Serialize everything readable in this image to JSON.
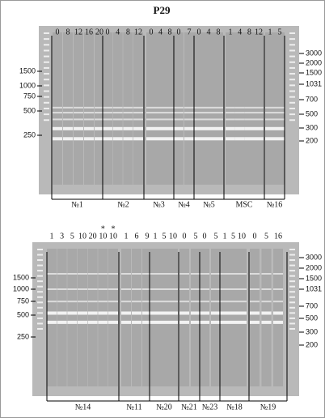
{
  "title": "P29",
  "gels": [
    {
      "groups": [
        {
          "label": "№1",
          "lanes": [
            {
              "label": "0"
            },
            {
              "label": "8"
            },
            {
              "label": "12"
            },
            {
              "label": "16"
            },
            {
              "label": "20"
            }
          ]
        },
        {
          "label": "№2",
          "lanes": [
            {
              "label": "0"
            },
            {
              "label": "4"
            },
            {
              "label": "8"
            },
            {
              "label": "12"
            }
          ]
        },
        {
          "label": "№3",
          "lanes": [
            {
              "label": "0"
            },
            {
              "label": "4"
            },
            {
              "label": "8"
            }
          ]
        },
        {
          "label": "№4",
          "lanes": [
            {
              "label": "0"
            },
            {
              "label": "7"
            }
          ]
        },
        {
          "label": "№5",
          "lanes": [
            {
              "label": "0"
            },
            {
              "label": "4"
            },
            {
              "label": "8"
            }
          ]
        },
        {
          "label": "MSC",
          "lanes": [
            {
              "label": "1"
            },
            {
              "label": "4"
            },
            {
              "label": "8"
            },
            {
              "label": "12"
            }
          ]
        },
        {
          "label": "№16",
          "lanes": [
            {
              "label": "1"
            },
            {
              "label": "5"
            }
          ]
        }
      ],
      "left_ladder": [
        "1500",
        "1000",
        "750",
        "500",
        "250"
      ],
      "right_ladder": [
        "3000",
        "2000",
        "1500",
        "1031",
        "700",
        "500",
        "300",
        "200"
      ]
    },
    {
      "groups": [
        {
          "label": "№14",
          "lanes": [
            {
              "label": "1"
            },
            {
              "label": "3"
            },
            {
              "label": "5"
            },
            {
              "label": "10"
            },
            {
              "label": "20"
            },
            {
              "label": "10",
              "mark": "*"
            },
            {
              "label": "10",
              "mark": "*"
            }
          ]
        },
        {
          "label": "№11",
          "lanes": [
            {
              "label": "1"
            },
            {
              "label": "6"
            },
            {
              "label": "9"
            }
          ]
        },
        {
          "label": "№20",
          "lanes": [
            {
              "label": "1"
            },
            {
              "label": "5"
            },
            {
              "label": "10"
            }
          ]
        },
        {
          "label": "№21",
          "lanes": [
            {
              "label": "0"
            },
            {
              "label": "5"
            }
          ]
        },
        {
          "label": "№23",
          "lanes": [
            {
              "label": "0"
            },
            {
              "label": "5"
            }
          ]
        },
        {
          "label": "№18",
          "lanes": [
            {
              "label": "1"
            },
            {
              "label": "5"
            },
            {
              "label": "10"
            }
          ]
        },
        {
          "label": "№19",
          "lanes": [
            {
              "label": "0"
            },
            {
              "label": "5"
            },
            {
              "label": "16"
            }
          ]
        }
      ],
      "left_ladder": [
        "1500",
        "1000",
        "750",
        "500",
        "250"
      ],
      "right_ladder": [
        "3000",
        "2000",
        "1500",
        "1031",
        "700",
        "500",
        "300",
        "200"
      ]
    }
  ]
}
